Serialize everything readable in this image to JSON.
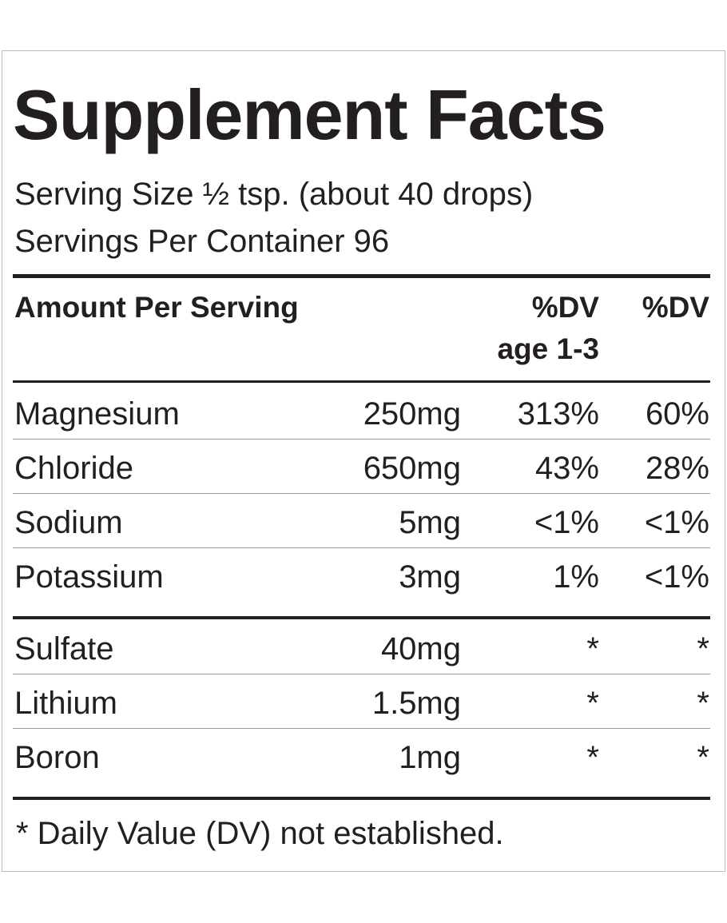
{
  "title": "Supplement Facts",
  "serving_size": "Serving Size ½ tsp. (about 40 drops)",
  "servings_per_container": "Servings Per Container 96",
  "header": {
    "amount": "Amount Per Serving",
    "dv_child": [
      "%DV",
      "age 1-3"
    ],
    "dv_adult": "%DV"
  },
  "groups": [
    [
      [
        "Magnesium",
        "250mg",
        "313%",
        "60%"
      ],
      [
        "Chloride",
        "650mg",
        "43%",
        "28%"
      ],
      [
        "Sodium",
        "5mg",
        "<1%",
        "<1%"
      ],
      [
        "Potassium",
        "3mg",
        "1%",
        "<1%"
      ]
    ],
    [
      [
        "Sulfate",
        "40mg",
        "*",
        "*"
      ],
      [
        "Lithium",
        "1.5mg",
        "*",
        "*"
      ],
      [
        "Boron",
        "1mg",
        "*",
        "*"
      ]
    ]
  ],
  "footnote": "* Daily Value (DV) not established."
}
